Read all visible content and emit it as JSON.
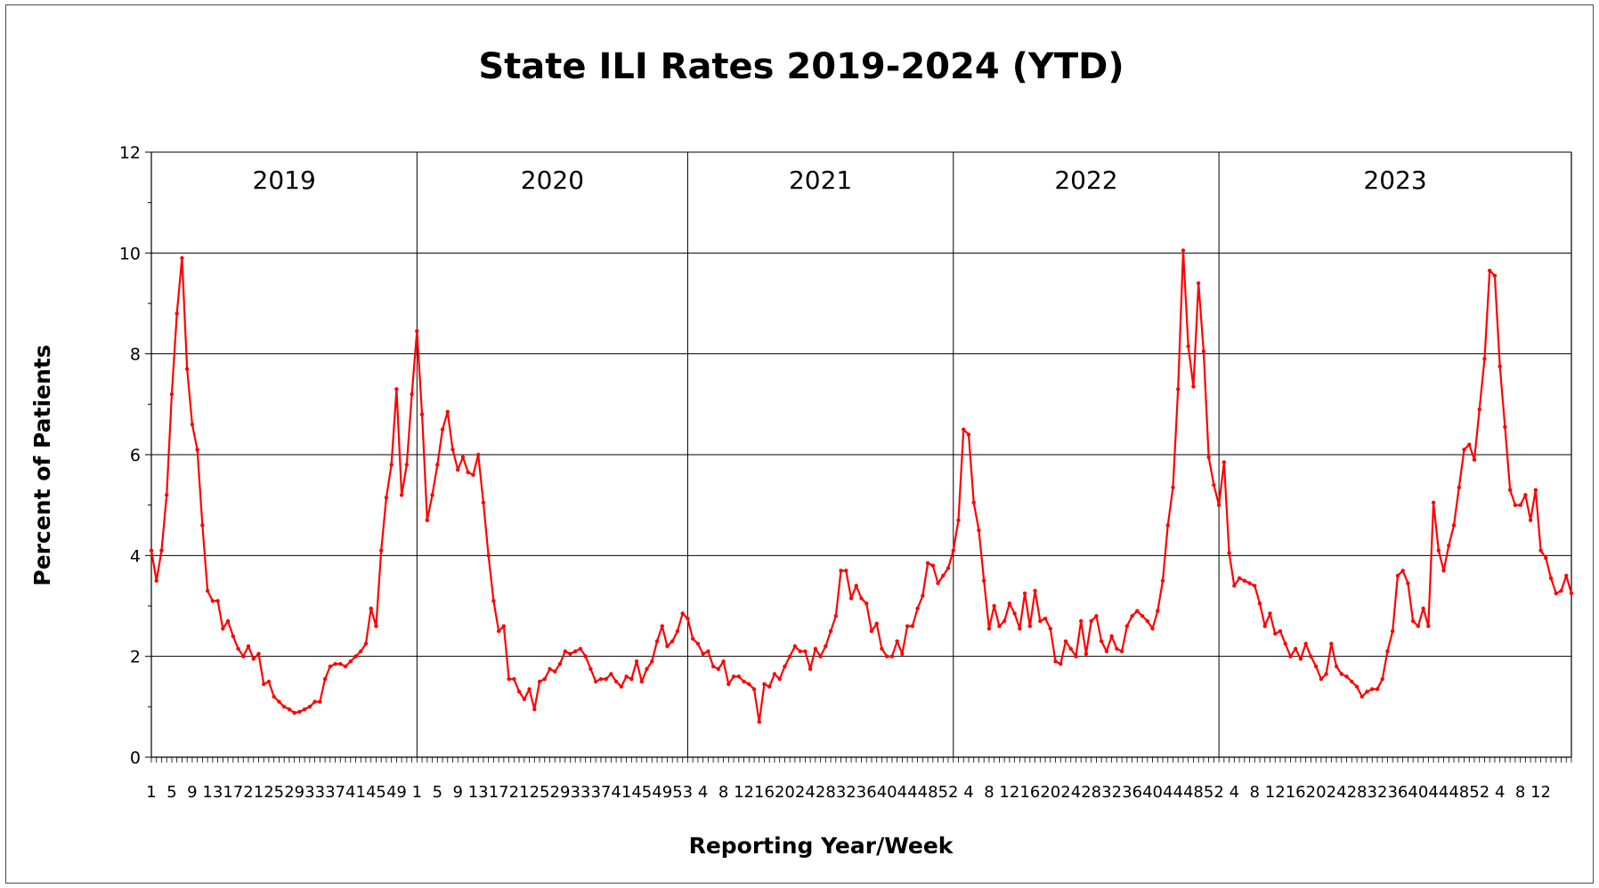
{
  "chart_data": {
    "type": "line",
    "title": "State ILI Rates 2019-2024 (YTD)",
    "xlabel": "Reporting Year/Week",
    "ylabel": "Percent of Patients",
    "ylim": [
      0,
      12
    ],
    "yticks": [
      "0",
      "2",
      "4",
      "6",
      "8",
      "10",
      "12"
    ],
    "grid": "horizontal",
    "line_color": "#ff0000",
    "season_labels": [
      "2019",
      "2020",
      "2021",
      "2022",
      "2023"
    ],
    "x_tick_labels": [
      "1",
      "5",
      "9",
      "13",
      "17",
      "21",
      "25",
      "29",
      "33",
      "37",
      "41",
      "45",
      "49",
      "1",
      "5",
      "9",
      "13",
      "17",
      "21",
      "25",
      "29",
      "33",
      "37",
      "41",
      "45",
      "49",
      "53",
      "4",
      "8",
      "12",
      "16",
      "20",
      "24",
      "28",
      "32",
      "36",
      "40",
      "44",
      "48",
      "52",
      "4",
      "8",
      "12",
      "16",
      "20",
      "24",
      "28",
      "32",
      "36",
      "40",
      "44",
      "48",
      "52",
      "4",
      "8",
      "12",
      "16",
      "20",
      "24",
      "28",
      "32",
      "36",
      "40",
      "44",
      "48",
      "52",
      "4",
      "8",
      "12"
    ],
    "series": [
      {
        "values": [
          4.1,
          3.5,
          4.1,
          5.2,
          7.2,
          8.8,
          9.9,
          7.7,
          6.6,
          6.1,
          4.6,
          3.3,
          3.1,
          3.1,
          2.55,
          2.7,
          2.4,
          2.15,
          2.0,
          2.2,
          1.95,
          2.05,
          1.45,
          1.5,
          1.2,
          1.1,
          1.0,
          0.95,
          0.88,
          0.9,
          0.95,
          1.0,
          1.1,
          1.1,
          1.55,
          1.8,
          1.85,
          1.85,
          1.8,
          1.9,
          2.0,
          2.1,
          2.25,
          2.95,
          2.6,
          4.1,
          5.15,
          5.8,
          7.3,
          5.2,
          5.8,
          7.2,
          8.45,
          6.8,
          4.7,
          5.2,
          5.8,
          6.5,
          6.85,
          6.1,
          5.7,
          5.95,
          5.65,
          5.6,
          6.0,
          5.05,
          4.0,
          3.1,
          2.5,
          2.6,
          1.55,
          1.55,
          1.3,
          1.15,
          1.35,
          0.95,
          1.5,
          1.55,
          1.75,
          1.7,
          1.85,
          2.1,
          2.05,
          2.1,
          2.15,
          2.0,
          1.75,
          1.5,
          1.55,
          1.55,
          1.65,
          1.5,
          1.4,
          1.6,
          1.55,
          1.9,
          1.5,
          1.75,
          1.9,
          2.3,
          2.6,
          2.2,
          2.3,
          2.5,
          2.85,
          2.75,
          2.35,
          2.25,
          2.05,
          2.1,
          1.8,
          1.75,
          1.9,
          1.45,
          1.6,
          1.6,
          1.5,
          1.45,
          1.35,
          0.7,
          1.45,
          1.4,
          1.65,
          1.55,
          1.8,
          2.0,
          2.2,
          2.1,
          2.1,
          1.75,
          2.15,
          2.0,
          2.2,
          2.5,
          2.8,
          3.7,
          3.7,
          3.15,
          3.4,
          3.15,
          3.05,
          2.5,
          2.65,
          2.15,
          2.0,
          2.0,
          2.3,
          2.05,
          2.6,
          2.6,
          2.95,
          3.2,
          3.85,
          3.8,
          3.45,
          3.6,
          3.75,
          4.1,
          4.7,
          6.5,
          6.4,
          5.05,
          4.5,
          3.5,
          2.55,
          3.0,
          2.6,
          2.7,
          3.05,
          2.85,
          2.55,
          3.25,
          2.6,
          3.3,
          2.7,
          2.75,
          2.55,
          1.9,
          1.85,
          2.3,
          2.15,
          2.0,
          2.7,
          2.05,
          2.7,
          2.8,
          2.3,
          2.1,
          2.4,
          2.15,
          2.1,
          2.6,
          2.8,
          2.9,
          2.8,
          2.7,
          2.55,
          2.9,
          3.5,
          4.6,
          5.35,
          7.3,
          10.05,
          8.15,
          7.35,
          9.4,
          8.05,
          5.95,
          5.4,
          5.0,
          5.85,
          4.05,
          3.4,
          3.55,
          3.5,
          3.45,
          3.4,
          3.05,
          2.6,
          2.85,
          2.45,
          2.5,
          2.25,
          2.0,
          2.15,
          1.95,
          2.25,
          2.0,
          1.8,
          1.55,
          1.65,
          2.25,
          1.8,
          1.65,
          1.6,
          1.5,
          1.4,
          1.2,
          1.3,
          1.35,
          1.35,
          1.55,
          2.1,
          2.5,
          3.6,
          3.7,
          3.45,
          2.7,
          2.6,
          2.95,
          2.6,
          5.05,
          4.1,
          3.7,
          4.2,
          4.6,
          5.35,
          6.1,
          6.2,
          5.9,
          6.9,
          7.9,
          9.65,
          9.55,
          7.75,
          6.55,
          5.3,
          5.0,
          5.0,
          5.2,
          4.7,
          5.3,
          4.1,
          3.95,
          3.55,
          3.25,
          3.3,
          3.6,
          3.25
        ]
      }
    ]
  }
}
